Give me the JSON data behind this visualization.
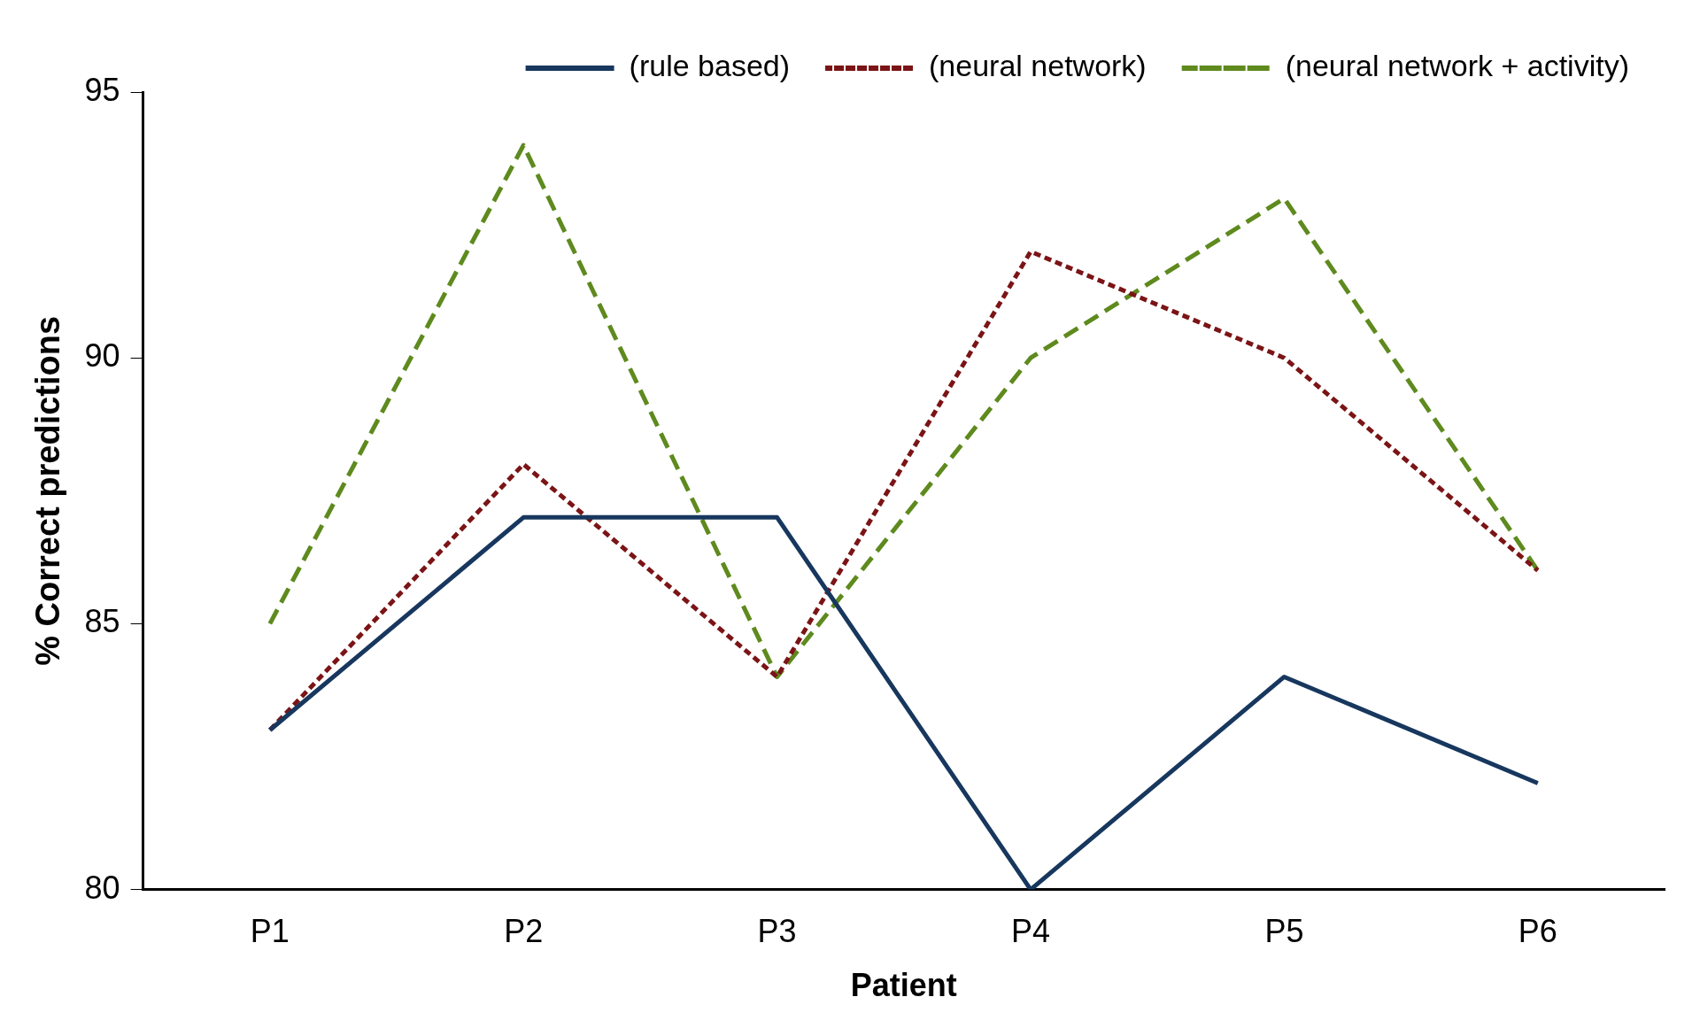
{
  "chart_data": {
    "type": "line",
    "xlabel": "Patient",
    "ylabel": "% Correct predictions",
    "categories": [
      "P1",
      "P2",
      "P3",
      "P4",
      "P5",
      "P6"
    ],
    "series": [
      {
        "name": "(rule based)",
        "color": "#17375e",
        "line_style": "solid",
        "values": [
          83,
          87,
          87,
          80,
          84,
          82
        ]
      },
      {
        "name": "(neural network)",
        "color": "#7b1416",
        "line_style": "dotted",
        "values": [
          83,
          88,
          84,
          92,
          90,
          86
        ]
      },
      {
        "name": "(neural network + activity)",
        "color": "#5e8a1e",
        "line_style": "dashed",
        "values": [
          85,
          94,
          84,
          90,
          93,
          86
        ]
      }
    ],
    "ylim": [
      80,
      95
    ],
    "yticks": [
      80,
      85,
      90,
      95
    ],
    "grid": false,
    "legend": "top",
    "marker": "none"
  }
}
